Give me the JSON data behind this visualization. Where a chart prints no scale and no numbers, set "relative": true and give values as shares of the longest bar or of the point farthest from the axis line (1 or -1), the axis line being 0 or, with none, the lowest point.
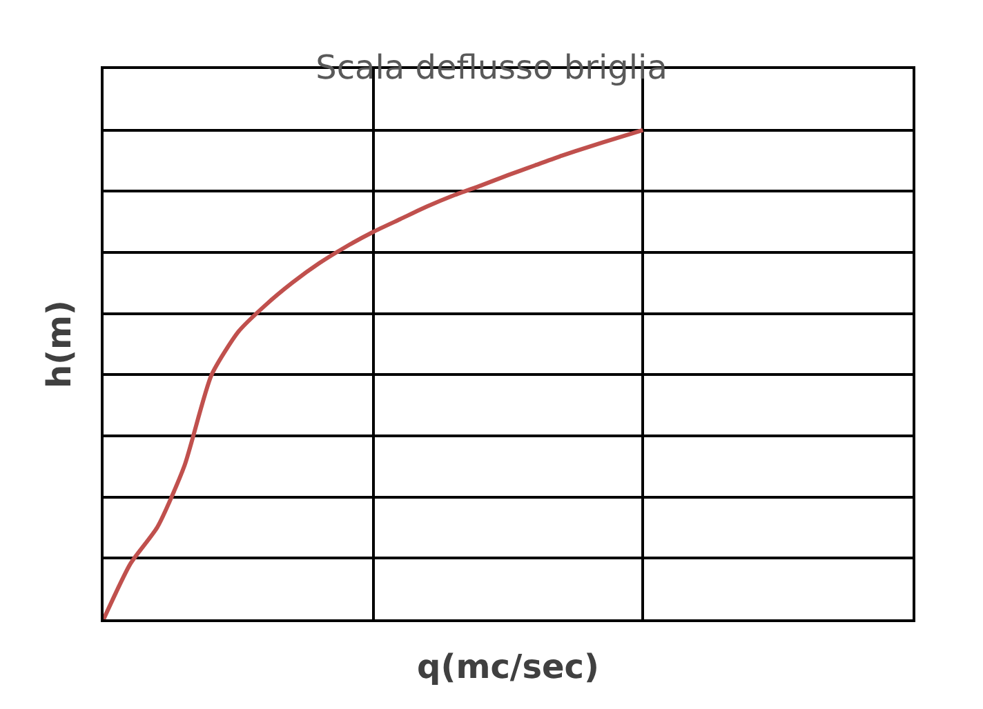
{
  "chart_data": {
    "type": "line",
    "title": "Scala deflusso briglia",
    "xlabel": "q(mc/sec)",
    "ylabel": "h(m)",
    "relative": true,
    "grid": true,
    "marker": "none",
    "line_style": "solid",
    "categories": [
      null,
      null,
      null,
      null,
      null,
      null,
      null,
      null,
      null,
      null,
      null,
      null,
      null,
      null,
      null,
      null,
      null,
      null,
      null,
      null,
      null,
      null,
      null,
      null,
      null,
      null,
      null,
      null,
      null,
      null,
      null
    ],
    "series": [
      {
        "color": "#c0504d",
        "values": [
          0,
          0.114,
          0.189,
          0.314,
          0.499,
          0.588,
          0.642,
          0.688,
          0.728,
          0.762,
          0.792,
          0.818,
          0.844,
          0.867,
          0.887,
          0.908,
          0.928,
          0.948,
          0.966,
          0.983,
          1,
          null,
          null,
          null,
          null,
          null,
          null,
          null,
          null,
          null,
          null
        ]
      }
    ]
  }
}
